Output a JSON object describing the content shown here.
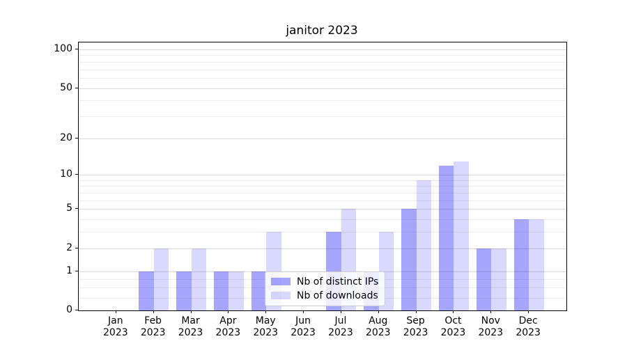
{
  "chart_data": {
    "type": "bar",
    "title": "janitor 2023",
    "x_tick_labels": [
      {
        "month": "Jan",
        "year": "2023"
      },
      {
        "month": "Feb",
        "year": "2023"
      },
      {
        "month": "Mar",
        "year": "2023"
      },
      {
        "month": "Apr",
        "year": "2023"
      },
      {
        "month": "May",
        "year": "2023"
      },
      {
        "month": "Jun",
        "year": "2023"
      },
      {
        "month": "Jul",
        "year": "2023"
      },
      {
        "month": "Aug",
        "year": "2023"
      },
      {
        "month": "Sep",
        "year": "2023"
      },
      {
        "month": "Oct",
        "year": "2023"
      },
      {
        "month": "Nov",
        "year": "2023"
      },
      {
        "month": "Dec",
        "year": "2023"
      }
    ],
    "series": [
      {
        "name": "Nb of distinct IPs",
        "color": "rgba(0,0,255,0.35)",
        "values": [
          0,
          1,
          1,
          1,
          1,
          0,
          3,
          1,
          5,
          12,
          2,
          4
        ]
      },
      {
        "name": "Nb of downloads",
        "color": "rgba(0,0,255,0.15)",
        "values": [
          0,
          2,
          2,
          1,
          3,
          0,
          5,
          3,
          9,
          13,
          2,
          4
        ]
      }
    ],
    "yscale": "log1p",
    "ylim": [
      0,
      113.2
    ],
    "yticks": [
      0,
      1,
      2,
      5,
      10,
      20,
      50,
      100
    ],
    "minor_yticks": [
      0.25,
      0.5,
      0.75,
      3,
      4,
      6,
      7,
      8,
      9,
      30,
      40,
      60,
      70,
      80,
      90
    ],
    "grid": true,
    "legend_position": "lower center",
    "colors": {
      "grid_major": "#d9d9d9",
      "grid_minor": "#ededed",
      "spine": "#000000",
      "text": "#000000",
      "background": "#ffffff"
    }
  }
}
